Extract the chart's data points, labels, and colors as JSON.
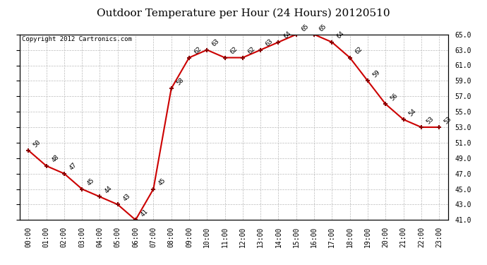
{
  "title": "Outdoor Temperature per Hour (24 Hours) 20120510",
  "copyright_text": "Copyright 2012 Cartronics.com",
  "hours": [
    0,
    1,
    2,
    3,
    4,
    5,
    6,
    7,
    8,
    9,
    10,
    11,
    12,
    13,
    14,
    15,
    16,
    17,
    18,
    19,
    20,
    21,
    22,
    23
  ],
  "temps": [
    50,
    48,
    47,
    45,
    44,
    43,
    41,
    45,
    58,
    62,
    63,
    62,
    62,
    63,
    64,
    65,
    65,
    64,
    62,
    59,
    56,
    54,
    53,
    53
  ],
  "hour_labels": [
    "00:00",
    "01:00",
    "02:00",
    "03:00",
    "04:00",
    "05:00",
    "06:00",
    "07:00",
    "08:00",
    "09:00",
    "10:00",
    "11:00",
    "12:00",
    "13:00",
    "14:00",
    "15:00",
    "16:00",
    "17:00",
    "18:00",
    "19:00",
    "20:00",
    "21:00",
    "22:00",
    "23:00"
  ],
  "ylim": [
    41.0,
    65.0
  ],
  "yticks": [
    41.0,
    43.0,
    45.0,
    47.0,
    49.0,
    51.0,
    53.0,
    55.0,
    57.0,
    59.0,
    61.0,
    63.0,
    65.0
  ],
  "line_color": "#cc0000",
  "marker_color": "#880000",
  "bg_color": "#ffffff",
  "plot_bg_color": "#ffffff",
  "grid_color": "#bbbbbb",
  "title_fontsize": 11,
  "annotation_fontsize": 6.5,
  "copyright_fontsize": 6.5,
  "tick_fontsize": 7
}
